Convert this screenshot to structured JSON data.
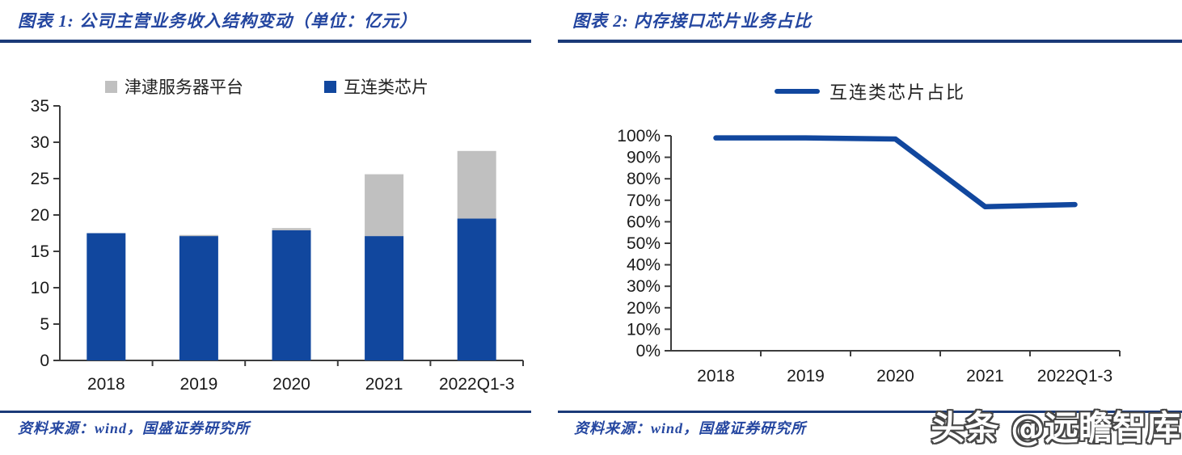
{
  "figure1": {
    "title": "图表 1:  公司主营业务收入结构变动（单位：亿元）",
    "source": "资料来源：wind，国盛证券研究所"
  },
  "figure2": {
    "title": "图表 2:  内存接口芯片业务占比",
    "source": "资料来源：wind，国盛证券研究所"
  },
  "watermark": {
    "text": "头条 @远瞻智库"
  },
  "colors": {
    "series_blue": "#11479E",
    "series_gray": "#C0C0C0",
    "rule_navy": "#1b3a78",
    "title_blue": "#2446a0",
    "axis": "#3d3d3d"
  },
  "chart_data": [
    {
      "type": "bar",
      "stacked": true,
      "title": "公司主营业务收入结构变动（单位：亿元）",
      "categories": [
        "2018",
        "2019",
        "2020",
        "2021",
        "2022Q1-3"
      ],
      "series": [
        {
          "name": "互连类芯片",
          "color": "#11479E",
          "values": [
            17.5,
            17.1,
            17.9,
            17.1,
            19.5
          ]
        },
        {
          "name": "津逮服务器平台",
          "color": "#C0C0C0",
          "values": [
            0.0,
            0.15,
            0.3,
            8.5,
            9.3
          ]
        }
      ],
      "xlabel": "",
      "ylabel": "",
      "ylim": [
        0,
        35
      ],
      "ytick_step": 5,
      "grid": false,
      "legend_position": "top"
    },
    {
      "type": "line",
      "title": "内存接口芯片业务占比",
      "categories": [
        "2018",
        "2019",
        "2020",
        "2021",
        "2022Q1-3"
      ],
      "series": [
        {
          "name": "互连类芯片占比",
          "color": "#11479E",
          "values": [
            99,
            99,
            98.5,
            67,
            68
          ]
        }
      ],
      "xlabel": "",
      "ylabel": "",
      "ylim": [
        0,
        100
      ],
      "ytick_step": 10,
      "ytick_format": "percent",
      "grid": false,
      "legend_position": "top"
    }
  ]
}
